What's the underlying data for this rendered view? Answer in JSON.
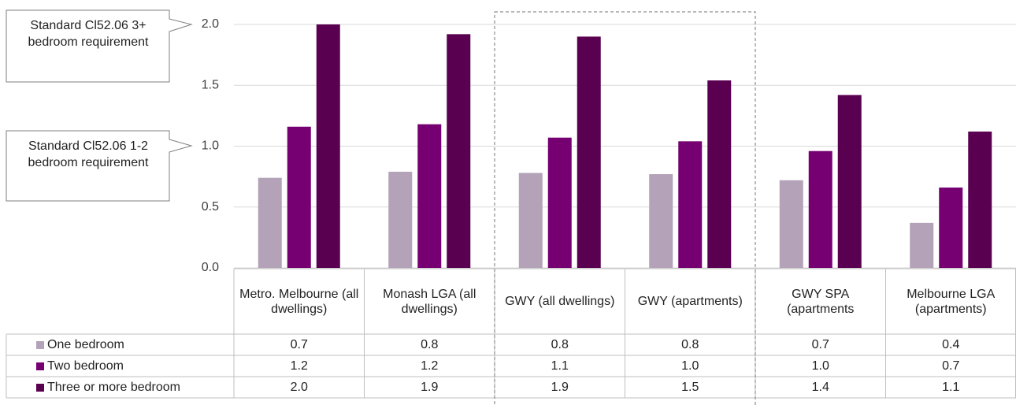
{
  "chart_data": {
    "type": "bar",
    "categories": [
      "Metro. Melbourne (all dwellings)",
      "Monash LGA (all dwellings)",
      "GWY (all dwellings)",
      "GWY (apartments)",
      "GWY SPA (apartments",
      "Melbourne LGA (apartments)"
    ],
    "series": [
      {
        "name": "One bedroom",
        "color": "#b3a2b8",
        "values": [
          0.74,
          0.79,
          0.78,
          0.77,
          0.72,
          0.37
        ],
        "value_labels": [
          "0.7",
          "0.8",
          "0.8",
          "0.8",
          "0.7",
          "0.4"
        ]
      },
      {
        "name": "Two bedroom",
        "color": "#760071",
        "values": [
          1.16,
          1.18,
          1.07,
          1.04,
          0.96,
          0.66
        ],
        "value_labels": [
          "1.2",
          "1.2",
          "1.1",
          "1.0",
          "1.0",
          "0.7"
        ]
      },
      {
        "name": "Three or more bedroom",
        "color": "#5a0050",
        "values": [
          2.0,
          1.92,
          1.9,
          1.54,
          1.42,
          1.12
        ],
        "value_labels": [
          "2.0",
          "1.9",
          "1.9",
          "1.5",
          "1.4",
          "1.1"
        ]
      }
    ],
    "ylim": [
      0,
      2.0
    ],
    "yticks": [
      {
        "value": 0,
        "label": "0.0"
      },
      0.5,
      {
        "value": 1,
        "label": "1.0"
      },
      1.5,
      {
        "value": 2,
        "label": "2.0"
      }
    ],
    "grid": true,
    "annotations": [
      "Standard Cl52.06 3+ bedroom requirement",
      "Standard Cl52.06 1-2 bedroom requirement"
    ]
  }
}
